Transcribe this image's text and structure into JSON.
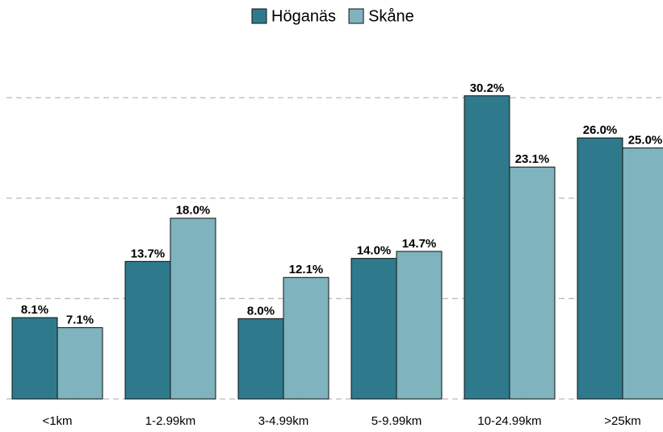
{
  "chart_data": {
    "type": "bar",
    "categories": [
      "<1km",
      "1-2.99km",
      "3-4.99km",
      "5-9.99km",
      "10-24.99km",
      ">25km"
    ],
    "series": [
      {
        "name": "Höganäs",
        "color": "#2e7a8c",
        "values": [
          8.1,
          13.7,
          8.0,
          14.0,
          30.2,
          26.0
        ],
        "value_labels": [
          "8.1%",
          "13.7%",
          "8.0%",
          "14.0%",
          "30.2%",
          "26.0%"
        ]
      },
      {
        "name": "Skåne",
        "color": "#7fb3bd",
        "values": [
          7.1,
          18.0,
          12.1,
          14.7,
          23.1,
          25.0
        ],
        "value_labels": [
          "7.1%",
          "18.0%",
          "12.1%",
          "14.7%",
          "23.1%",
          "25.0%"
        ]
      }
    ],
    "ylim": [
      0,
      35
    ],
    "yticks": [
      0,
      10,
      20,
      30
    ],
    "grid": true,
    "legend": "top"
  }
}
